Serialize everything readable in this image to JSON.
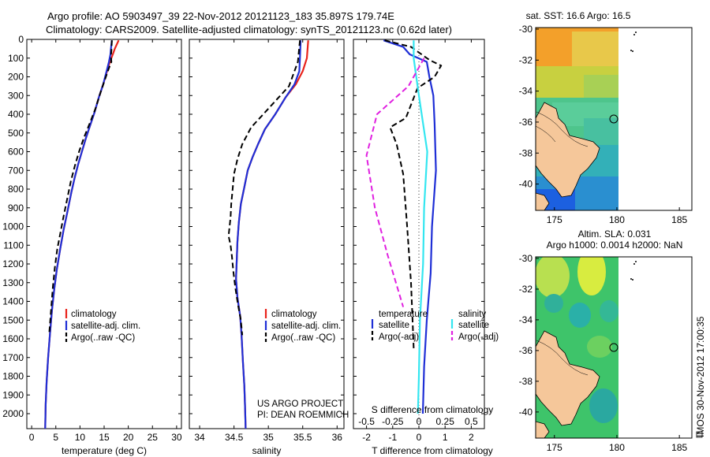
{
  "title": {
    "line1": "Argo profile: AO 5903497_39 22-Nov-2012 20121123_183 35.897S 179.74E",
    "line2": "Climatology: CARS2009. Satellite-adjusted climatology: synTS_20121123.nc (0.62d later)"
  },
  "side_label": "IMOS 30-Nov-2012 17:00:35",
  "colors": {
    "climatology": "#e8231c",
    "satellite": "#1f2fd6",
    "argo": "#000000",
    "magenta": "#e020e0",
    "cyan": "#33e6f0",
    "land": "#f5c79a",
    "sea_green": "#3ec46a"
  },
  "chart_data": [
    {
      "type": "line",
      "xlabel": "temperature (deg C)",
      "ylabel": "",
      "xlim": [
        -1,
        31
      ],
      "ylim": [
        2080,
        0
      ],
      "xticks": [
        "0",
        "5",
        "10",
        "15",
        "20",
        "25",
        "30"
      ],
      "yticks": [
        "0",
        "100",
        "200",
        "300",
        "400",
        "500",
        "600",
        "700",
        "800",
        "900",
        "1000",
        "1100",
        "1200",
        "1300",
        "1400",
        "1500",
        "1600",
        "1700",
        "1800",
        "1900",
        "2000"
      ],
      "legend": [
        "climatology",
        "satellite-adj. clim.",
        "Argo(..raw -QC)"
      ],
      "series": [
        {
          "name": "climatology",
          "color": "#e8231c",
          "style": "solid",
          "points": [
            [
              18,
              5
            ],
            [
              17.2,
              50
            ],
            [
              16.8,
              80
            ],
            [
              16.2,
              120
            ],
            [
              15.6,
              170
            ],
            [
              14.8,
              240
            ],
            [
              13.9,
              310
            ],
            [
              13,
              390
            ],
            [
              12.1,
              460
            ],
            [
              11.2,
              530
            ],
            [
              10.4,
              600
            ],
            [
              9.6,
              670
            ],
            [
              8.9,
              740
            ],
            [
              8.2,
              820
            ],
            [
              7.4,
              920
            ],
            [
              6.6,
              1020
            ],
            [
              5.9,
              1120
            ],
            [
              5.2,
              1230
            ],
            [
              4.7,
              1330
            ],
            [
              4.2,
              1450
            ],
            [
              3.8,
              1570
            ],
            [
              3.4,
              1700
            ],
            [
              3.1,
              1830
            ],
            [
              2.9,
              1950
            ],
            [
              2.8,
              2080
            ]
          ]
        },
        {
          "name": "satellite-adj. clim.",
          "color": "#1f2fd6",
          "style": "solid",
          "points": [
            [
              16.6,
              5
            ],
            [
              16.4,
              50
            ],
            [
              16.3,
              80
            ],
            [
              16,
              120
            ],
            [
              15.5,
              170
            ],
            [
              14.8,
              240
            ],
            [
              13.9,
              310
            ],
            [
              13,
              390
            ],
            [
              12.1,
              460
            ],
            [
              11.2,
              530
            ],
            [
              10.4,
              600
            ],
            [
              9.6,
              670
            ],
            [
              8.9,
              740
            ],
            [
              8.2,
              820
            ],
            [
              7.4,
              920
            ],
            [
              6.6,
              1020
            ],
            [
              5.9,
              1120
            ],
            [
              5.2,
              1230
            ],
            [
              4.7,
              1330
            ],
            [
              4.2,
              1450
            ],
            [
              3.8,
              1570
            ],
            [
              3.4,
              1700
            ],
            [
              3.1,
              1830
            ],
            [
              2.9,
              1950
            ],
            [
              2.8,
              2080
            ]
          ]
        },
        {
          "name": "Argo(..raw -QC)",
          "color": "#000000",
          "style": "dashed",
          "points": [
            [
              16.6,
              5
            ],
            [
              16.5,
              60
            ],
            [
              16.4,
              90
            ],
            [
              16.5,
              120
            ],
            [
              15.9,
              160
            ],
            [
              14.3,
              280
            ],
            [
              13.2,
              370
            ],
            [
              12,
              450
            ],
            [
              10.9,
              520
            ],
            [
              9.8,
              600
            ],
            [
              8.9,
              680
            ],
            [
              8.1,
              760
            ],
            [
              7.3,
              860
            ],
            [
              6.5,
              960
            ],
            [
              5.9,
              1040
            ],
            [
              5.3,
              1120
            ],
            [
              4.8,
              1220
            ],
            [
              4.4,
              1320
            ],
            [
              4.1,
              1420
            ],
            [
              3.8,
              1520
            ],
            [
              3.6,
              1580
            ]
          ]
        }
      ]
    },
    {
      "type": "line",
      "xlabel": "salinity",
      "xlim": [
        33.85,
        36.1
      ],
      "ylim": [
        2080,
        0
      ],
      "xticks": [
        "34",
        "34.5",
        "35",
        "35.5",
        "36"
      ],
      "legend": [
        "climatology",
        "satellite-adj. clim.",
        "Argo(..raw -QC)"
      ],
      "annotation": [
        "US ARGO PROJECT",
        "PI: DEAN ROEMMICH"
      ],
      "series": [
        {
          "name": "climatology",
          "color": "#e8231c",
          "style": "solid",
          "points": [
            [
              35.58,
              5
            ],
            [
              35.56,
              100
            ],
            [
              35.5,
              170
            ],
            [
              35.4,
              240
            ],
            [
              35.25,
              310
            ],
            [
              35.1,
              400
            ],
            [
              34.95,
              480
            ],
            [
              34.85,
              560
            ],
            [
              34.77,
              630
            ],
            [
              34.7,
              700
            ],
            [
              34.65,
              790
            ],
            [
              34.6,
              880
            ],
            [
              34.57,
              980
            ],
            [
              34.55,
              1080
            ],
            [
              34.54,
              1180
            ],
            [
              34.53,
              1280
            ],
            [
              34.55,
              1380
            ],
            [
              34.59,
              1480
            ],
            [
              34.61,
              1580
            ],
            [
              34.63,
              1720
            ],
            [
              34.65,
              1850
            ],
            [
              34.66,
              1960
            ],
            [
              34.67,
              2080
            ]
          ]
        },
        {
          "name": "satellite-adj. clim.",
          "color": "#1f2fd6",
          "style": "solid",
          "points": [
            [
              35.47,
              5
            ],
            [
              35.46,
              100
            ],
            [
              35.45,
              170
            ],
            [
              35.38,
              240
            ],
            [
              35.25,
              310
            ],
            [
              35.1,
              400
            ],
            [
              34.95,
              480
            ],
            [
              34.85,
              560
            ],
            [
              34.77,
              630
            ],
            [
              34.7,
              700
            ],
            [
              34.65,
              790
            ],
            [
              34.6,
              880
            ],
            [
              34.57,
              980
            ],
            [
              34.55,
              1080
            ],
            [
              34.54,
              1180
            ],
            [
              34.53,
              1280
            ],
            [
              34.55,
              1380
            ],
            [
              34.59,
              1480
            ],
            [
              34.61,
              1580
            ],
            [
              34.63,
              1720
            ],
            [
              34.65,
              1850
            ],
            [
              34.66,
              1960
            ],
            [
              34.67,
              2080
            ]
          ]
        },
        {
          "name": "Argo(..raw -QC)",
          "color": "#000000",
          "style": "dashed",
          "points": [
            [
              35.46,
              5
            ],
            [
              35.43,
              120
            ],
            [
              35.3,
              250
            ],
            [
              35,
              370
            ],
            [
              34.9,
              410
            ],
            [
              34.75,
              470
            ],
            [
              34.62,
              560
            ],
            [
              34.55,
              640
            ],
            [
              34.5,
              720
            ],
            [
              34.48,
              800
            ],
            [
              34.46,
              880
            ],
            [
              34.45,
              950
            ],
            [
              34.43,
              1020
            ],
            [
              34.42,
              1050
            ],
            [
              34.45,
              1100
            ],
            [
              34.47,
              1160
            ],
            [
              34.49,
              1240
            ],
            [
              34.52,
              1330
            ],
            [
              34.56,
              1420
            ],
            [
              34.6,
              1500
            ],
            [
              34.62,
              1580
            ]
          ]
        }
      ]
    },
    {
      "type": "line",
      "xlabel": "T difference from climatology",
      "xlabel_top": "S difference from climatology",
      "xlim": [
        -2.5,
        2.5
      ],
      "ylim": [
        2080,
        0
      ],
      "xticks": [
        "-2",
        "-1",
        "0",
        "1",
        "2"
      ],
      "xticks_top": [
        "-0.5",
        "-0.25",
        "0",
        "0.25",
        "0.5"
      ],
      "legend": {
        "temperature_header": "temperature",
        "salinity_header": "salinity",
        "temp_satellite": "satellite",
        "temp_argo": "Argo(-adj)",
        "sal_satellite": "satellite",
        "sal_argo": "Argo(-adj)"
      },
      "series": [
        {
          "name": "temperature satellite",
          "color": "#1f2fd6",
          "style": "solid",
          "points": [
            [
              -1.35,
              5
            ],
            [
              -0.6,
              40
            ],
            [
              -0.35,
              80
            ],
            [
              0.3,
              120
            ],
            [
              0.4,
              200
            ],
            [
              0.55,
              300
            ],
            [
              0.6,
              450
            ],
            [
              0.65,
              700
            ],
            [
              0.5,
              1000
            ],
            [
              0.45,
              1250
            ],
            [
              0.3,
              1500
            ],
            [
              0.2,
              1750
            ],
            [
              0.15,
              2000
            ]
          ]
        },
        {
          "name": "temperature Argo(-adj)",
          "color": "#000000",
          "style": "dashed",
          "points": [
            [
              -1.3,
              5
            ],
            [
              -0.3,
              40
            ],
            [
              0.4,
              110
            ],
            [
              0.85,
              140
            ],
            [
              0.6,
              200
            ],
            [
              -0.05,
              260
            ],
            [
              -0.5,
              420
            ],
            [
              -1.1,
              470
            ],
            [
              -0.85,
              560
            ],
            [
              -0.6,
              720
            ],
            [
              -0.45,
              1000
            ],
            [
              -0.3,
              1300
            ],
            [
              -0.2,
              1650
            ]
          ]
        },
        {
          "name": "salinity satellite",
          "color": "#33e6f0",
          "style": "solid",
          "points": [
            [
              -0.05,
              5
            ],
            [
              -0.05,
              100
            ],
            [
              0,
              300
            ],
            [
              0.08,
              600
            ],
            [
              0.05,
              900
            ],
            [
              0.04,
              1200
            ],
            [
              0.01,
              1500
            ],
            [
              0,
              1800
            ],
            [
              -0.01,
              2000
            ]
          ]
        },
        {
          "name": "salinity Argo(-adj)",
          "color": "#e020e0",
          "style": "dashed",
          "points": [
            [
              0.05,
              100
            ],
            [
              -0.1,
              250
            ],
            [
              -0.4,
              400
            ],
            [
              -0.5,
              620
            ],
            [
              -0.42,
              900
            ],
            [
              -0.3,
              1150
            ],
            [
              -0.15,
              1430
            ]
          ]
        }
      ]
    },
    {
      "type": "heatmap",
      "title": "sat. SST: 16.6  Argo: 16.5",
      "xlim": [
        173.5,
        186
      ],
      "ylim": [
        -41.7,
        -29.9
      ],
      "xticks": [
        "175",
        "180",
        "185"
      ],
      "yticks": [
        "-30",
        "-32",
        "-34",
        "-36",
        "-38",
        "-40"
      ],
      "marker": {
        "lon": 179.74,
        "lat": -35.897
      }
    },
    {
      "type": "heatmap",
      "title": "Altim. SLA: 0.031",
      "subtitle": "Argo h1000: 0.0014 h2000: NaN",
      "xlim": [
        173.5,
        186
      ],
      "ylim": [
        -41.7,
        -29.9
      ],
      "xticks": [
        "175",
        "180",
        "185"
      ],
      "yticks": [
        "-30",
        "-32",
        "-34",
        "-36",
        "-38",
        "-40"
      ],
      "marker": {
        "lon": 179.74,
        "lat": -35.897
      }
    }
  ]
}
